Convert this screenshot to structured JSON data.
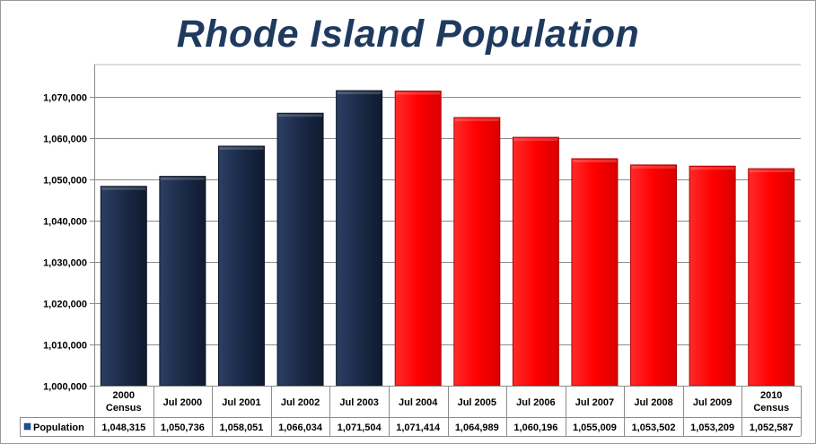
{
  "chart_data": {
    "type": "bar",
    "title": "Rhode Island Population",
    "categories": [
      [
        "2000",
        "Census"
      ],
      [
        "Jul 2000"
      ],
      [
        "Jul 2001"
      ],
      [
        "Jul 2002"
      ],
      [
        "Jul 2003"
      ],
      [
        "Jul 2004"
      ],
      [
        "Jul 2005"
      ],
      [
        "Jul 2006"
      ],
      [
        "Jul 2007"
      ],
      [
        "Jul 2008"
      ],
      [
        "Jul 2009"
      ],
      [
        "2010",
        "Census"
      ]
    ],
    "series": [
      {
        "name": "Population",
        "values": [
          1048315,
          1050736,
          1058051,
          1066034,
          1071504,
          1071414,
          1064989,
          1060196,
          1055009,
          1053502,
          1053209,
          1052587
        ],
        "value_labels": [
          "1,048,315",
          "1,050,736",
          "1,058,051",
          "1,066,034",
          "1,071,504",
          "1,071,414",
          "1,064,989",
          "1,060,196",
          "1,055,009",
          "1,053,502",
          "1,053,209",
          "1,052,587"
        ],
        "colors": [
          "#1b2a47",
          "#1b2a47",
          "#1b2a47",
          "#1b2a47",
          "#1b2a47",
          "#ff0000",
          "#ff0000",
          "#ff0000",
          "#ff0000",
          "#ff0000",
          "#ff0000",
          "#ff0000"
        ]
      }
    ],
    "ylim": [
      1000000,
      1070000
    ],
    "yticks": [
      1000000,
      1010000,
      1020000,
      1030000,
      1040000,
      1050000,
      1060000,
      1070000
    ],
    "ytick_labels": [
      "1,000,000",
      "1,010,000",
      "1,020,000",
      "1,030,000",
      "1,040,000",
      "1,050,000",
      "1,060,000",
      "1,070,000"
    ],
    "grid": true,
    "data_table": true,
    "legend_key_color": "#1f4e9a"
  }
}
